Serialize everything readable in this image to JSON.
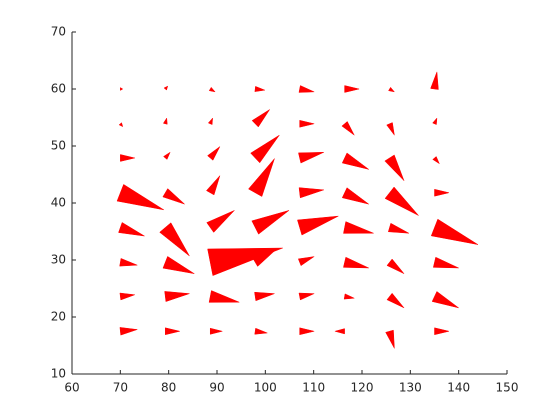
{
  "chart_data": {
    "type": "quiver",
    "color": "#ff0000",
    "x": [
      70,
      79.3,
      88.6,
      97.9,
      107.1,
      116.4,
      125.7,
      135,
      70,
      79.3,
      88.6,
      97.9,
      107.1,
      116.4,
      125.7,
      135,
      70,
      79.3,
      88.6,
      97.9,
      107.1,
      116.4,
      125.7,
      135,
      70,
      79.3,
      88.6,
      97.9,
      107.1,
      116.4,
      125.7,
      135,
      70,
      79.3,
      88.6,
      97.9,
      107.1,
      116.4,
      125.7,
      135,
      70,
      79.3,
      88.6,
      97.9,
      107.1,
      116.4,
      125.7,
      135,
      70,
      79.3,
      88.6,
      97.9,
      107.1,
      116.4,
      125.7,
      135,
      70,
      79.3,
      88.6,
      97.9,
      107.1,
      116.4,
      125.7,
      135
    ],
    "y": [
      17.5,
      17.5,
      17.5,
      17.5,
      17.5,
      17.5,
      17.5,
      17.5,
      23.6,
      23.6,
      23.6,
      23.6,
      23.6,
      23.6,
      23.6,
      23.6,
      29.6,
      29.6,
      29.6,
      29.6,
      29.6,
      29.6,
      29.6,
      29.6,
      35.7,
      35.7,
      35.7,
      35.7,
      35.7,
      35.7,
      35.7,
      35.7,
      41.8,
      41.8,
      41.8,
      41.8,
      41.8,
      41.8,
      41.8,
      41.8,
      47.9,
      47.9,
      47.9,
      47.9,
      47.9,
      47.9,
      47.9,
      47.9,
      53.9,
      53.9,
      53.9,
      53.9,
      53.9,
      53.9,
      53.9,
      53.9,
      60,
      60,
      60,
      60,
      60,
      60,
      60,
      60
    ],
    "u": [
      3.5,
      3,
      2.5,
      2.5,
      3,
      -2,
      1,
      3,
      3,
      5,
      6,
      4,
      3,
      2,
      3,
      5,
      3.5,
      6,
      15,
      4,
      3,
      5,
      3,
      5,
      5,
      5,
      5,
      7,
      8,
      6,
      4,
      9,
      9,
      4,
      2,
      4,
      5,
      5,
      6,
      3,
      3,
      1,
      2,
      5,
      5,
      5,
      3,
      1,
      0.5,
      0.3,
      0.5,
      3,
      3,
      2,
      1,
      0.5,
      0.5,
      0.5,
      1,
      2,
      3,
      3,
      1,
      0.5
    ],
    "v": [
      0.3,
      0,
      0,
      -0.3,
      0,
      0,
      -3,
      0,
      0.3,
      0.5,
      -1,
      0.5,
      0.5,
      -0.3,
      -2,
      -2,
      -0.5,
      -2,
      2.5,
      2,
      1,
      -1,
      -2,
      -1,
      -1.5,
      -5,
      3,
      3,
      2,
      -1,
      -1,
      -3,
      -3,
      -2,
      3,
      6,
      0.5,
      -2,
      -4,
      0,
      0,
      1,
      2,
      4,
      1,
      -2,
      -4,
      -1,
      -0.5,
      1,
      1,
      2.5,
      0,
      -2,
      -2,
      1,
      0,
      0.5,
      -0.5,
      -0.2,
      -0.5,
      0,
      -0.5,
      3
    ],
    "xlim": [
      60,
      150
    ],
    "xticks": [
      60,
      70,
      80,
      90,
      100,
      110,
      120,
      130,
      140,
      150
    ],
    "ylim": [
      10,
      70
    ],
    "yticks": [
      10,
      20,
      30,
      40,
      50,
      60,
      70
    ]
  }
}
